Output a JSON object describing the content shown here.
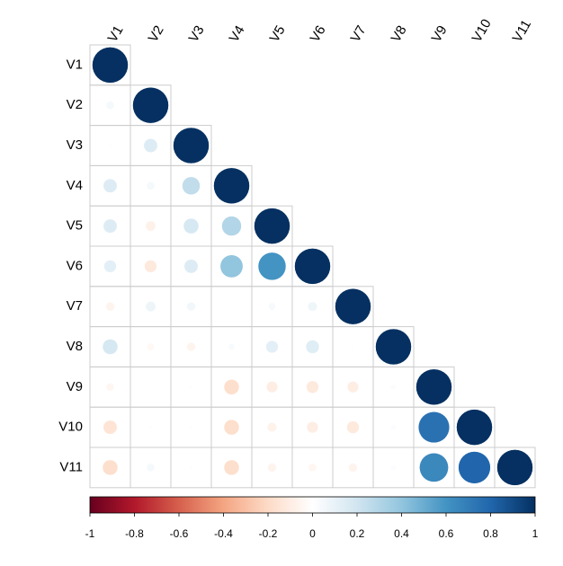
{
  "chart_data": {
    "type": "corrplot",
    "variables": [
      "V1",
      "V2",
      "V3",
      "V4",
      "V5",
      "V6",
      "V7",
      "V8",
      "V9",
      "V10",
      "V11"
    ],
    "matrix": [
      [
        1
      ],
      [
        0.05,
        1
      ],
      [
        0.01,
        0.15,
        1
      ],
      [
        0.15,
        0.05,
        0.25,
        1
      ],
      [
        0.15,
        -0.08,
        0.18,
        0.3,
        1
      ],
      [
        0.12,
        -0.12,
        0.15,
        0.4,
        0.6,
        1
      ],
      [
        -0.06,
        0.08,
        0.06,
        0.0,
        0.04,
        0.07,
        1
      ],
      [
        0.18,
        -0.04,
        -0.06,
        0.03,
        0.12,
        0.14,
        0.01,
        1
      ],
      [
        -0.05,
        0.0,
        -0.01,
        -0.18,
        -0.1,
        -0.12,
        -0.1,
        0.02,
        1
      ],
      [
        -0.15,
        -0.01,
        -0.01,
        -0.18,
        -0.07,
        -0.1,
        -0.12,
        0.02,
        0.75,
        1
      ],
      [
        -0.18,
        0.05,
        -0.01,
        -0.18,
        -0.06,
        -0.05,
        -0.06,
        0.02,
        0.65,
        0.8,
        1
      ]
    ],
    "palette": [
      "#67001F",
      "#B2182B",
      "#D6604D",
      "#F4A582",
      "#FDDBC7",
      "#FFFFFF",
      "#D1E5F0",
      "#92C5DE",
      "#4393C3",
      "#2166AC",
      "#053061"
    ],
    "clim": [
      -1,
      1
    ],
    "cticks": [
      -1,
      -0.8,
      -0.6,
      -0.4,
      -0.2,
      0,
      0.2,
      0.4,
      0.6,
      0.8,
      1
    ]
  }
}
